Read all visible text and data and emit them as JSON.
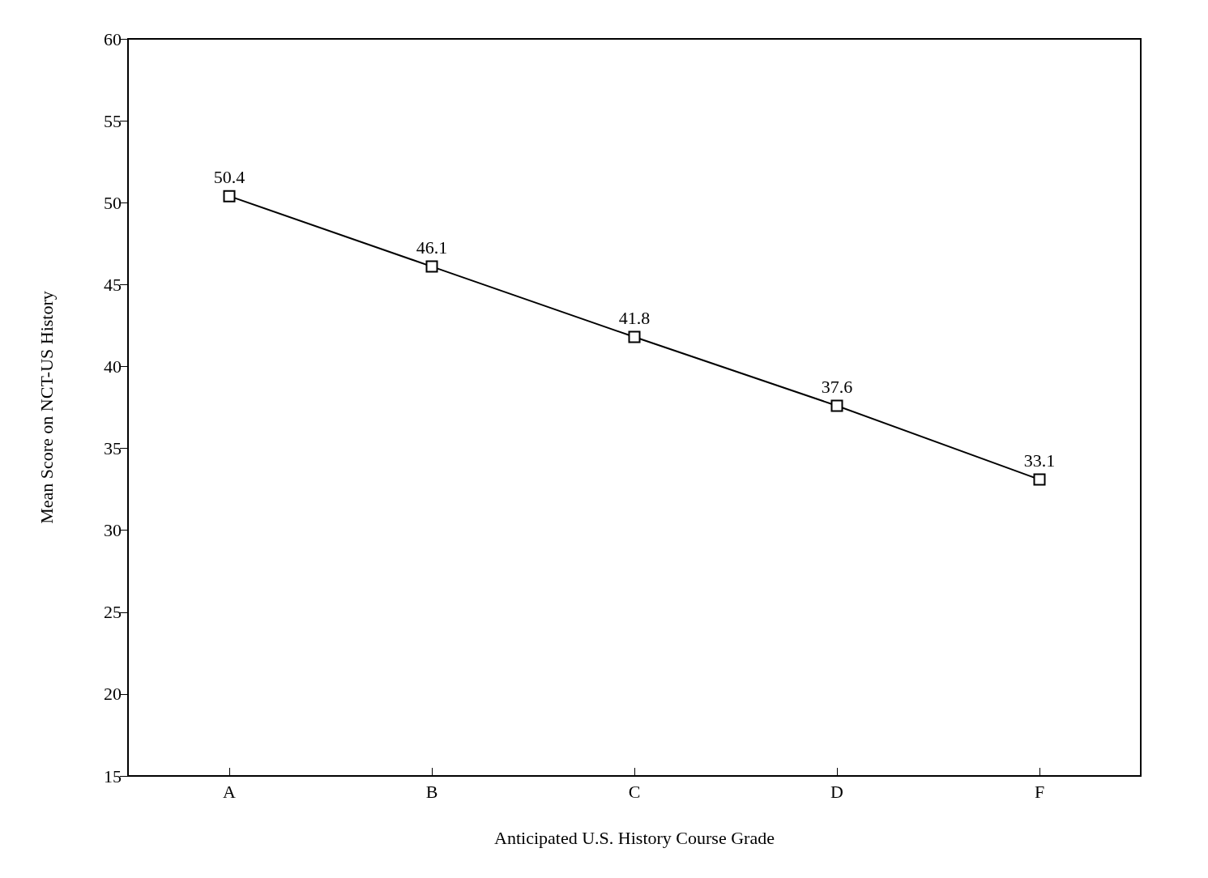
{
  "chart_data": {
    "type": "line",
    "xlabel": "Anticipated U.S. History Course Grade",
    "ylabel": "Mean Score on NCT-US History",
    "categories": [
      "A",
      "B",
      "C",
      "D",
      "F"
    ],
    "series": [
      {
        "color": "#000000",
        "values": [
          50.4,
          46.1,
          41.8,
          37.6,
          33.1
        ]
      }
    ],
    "ylim": [
      15,
      60
    ],
    "yticks": [
      15,
      20,
      25,
      30,
      35,
      40,
      45,
      50,
      55,
      60
    ],
    "data_labels": true,
    "marker": "square",
    "line_style": "solid",
    "grid": false
  }
}
